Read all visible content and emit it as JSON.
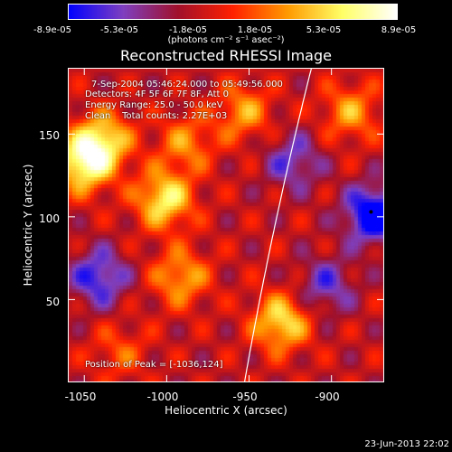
{
  "chart_data": {
    "type": "heatmap",
    "title": "Reconstructed RHESSI Image",
    "xlabel": "Heliocentric X (arcsec)",
    "ylabel": "Heliocentric Y (arcsec)",
    "xlim": [
      -1060,
      -868
    ],
    "ylim": [
      0,
      190
    ],
    "x_ticks": [
      -1050,
      -1000,
      -950,
      -900
    ],
    "y_ticks": [
      50,
      100,
      150
    ],
    "colorbar": {
      "ticks": [
        "-8.9e-05",
        "-5.3e-05",
        "-1.8e-05",
        "1.8e-05",
        "5.3e-05",
        "8.9e-05"
      ],
      "unit": "(photons cm⁻² s⁻¹ asec⁻²)",
      "range": [
        -8.9e-05,
        8.9e-05
      ],
      "colormap": [
        "#0000ff",
        "#7f3fbf",
        "#a0102a",
        "#ff2000",
        "#ff9900",
        "#ffff66",
        "#ffffff"
      ]
    },
    "annotations": {
      "time_range": "7-Sep-2004 05:46:24.000 to 05:49:56.000",
      "detectors": "Detectors: 4F 5F 6F 7F 8F, Att 0",
      "energy": "Energy Range: 25.0 - 50.0 keV",
      "clean": "Clean    Total counts: 2.27E+03",
      "peak": "Position of Peak = [-1036,124]"
    },
    "peak_position": [
      -1036,
      124
    ],
    "bright_sources": [
      {
        "x": -1052,
        "y": 134,
        "value": 8.9e-05
      },
      {
        "x": -1040,
        "y": 148,
        "value": 7e-05
      },
      {
        "x": -1003,
        "y": 112,
        "value": 8e-05
      },
      {
        "x": -990,
        "y": 146,
        "value": 4.5e-05
      },
      {
        "x": -993,
        "y": 65,
        "value": 5.5e-05
      },
      {
        "x": -932,
        "y": 38,
        "value": 7.5e-05
      },
      {
        "x": -890,
        "y": 165,
        "value": 5e-05
      },
      {
        "x": -955,
        "y": 165,
        "value": 5e-05
      },
      {
        "x": -1030,
        "y": 20,
        "value": 3e-05
      }
    ],
    "dark_sources": [
      {
        "x": -876,
        "y": 103,
        "value": -8.9e-05
      },
      {
        "x": -1043,
        "y": 65,
        "value": -6e-05
      },
      {
        "x": -905,
        "y": 60,
        "value": -4.5e-05
      },
      {
        "x": -925,
        "y": 135,
        "value": -4.5e-05
      }
    ],
    "limb": {
      "present": true,
      "color": "#ffffff"
    }
  },
  "footer": {
    "date": "23-Jun-2013 22:02"
  }
}
